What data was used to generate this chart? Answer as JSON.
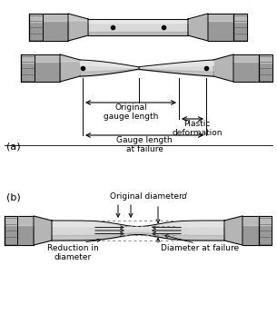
{
  "fig_width": 3.05,
  "fig_height": 3.57,
  "bg_color": "#ffffff",
  "text_color": "#000000",
  "label_a": "(a)",
  "label_b": "(b)",
  "label_orig_gauge": "Original\ngauge length",
  "label_plastic": "Plastic\ndeformation",
  "label_gauge_failure": "Gauge length\nat failure",
  "label_orig_diam": "Original diameter ",
  "label_diam_d": "d",
  "label_reduction": "Reduction in\ndiameter",
  "label_diam_failure": "Diameter at failure"
}
